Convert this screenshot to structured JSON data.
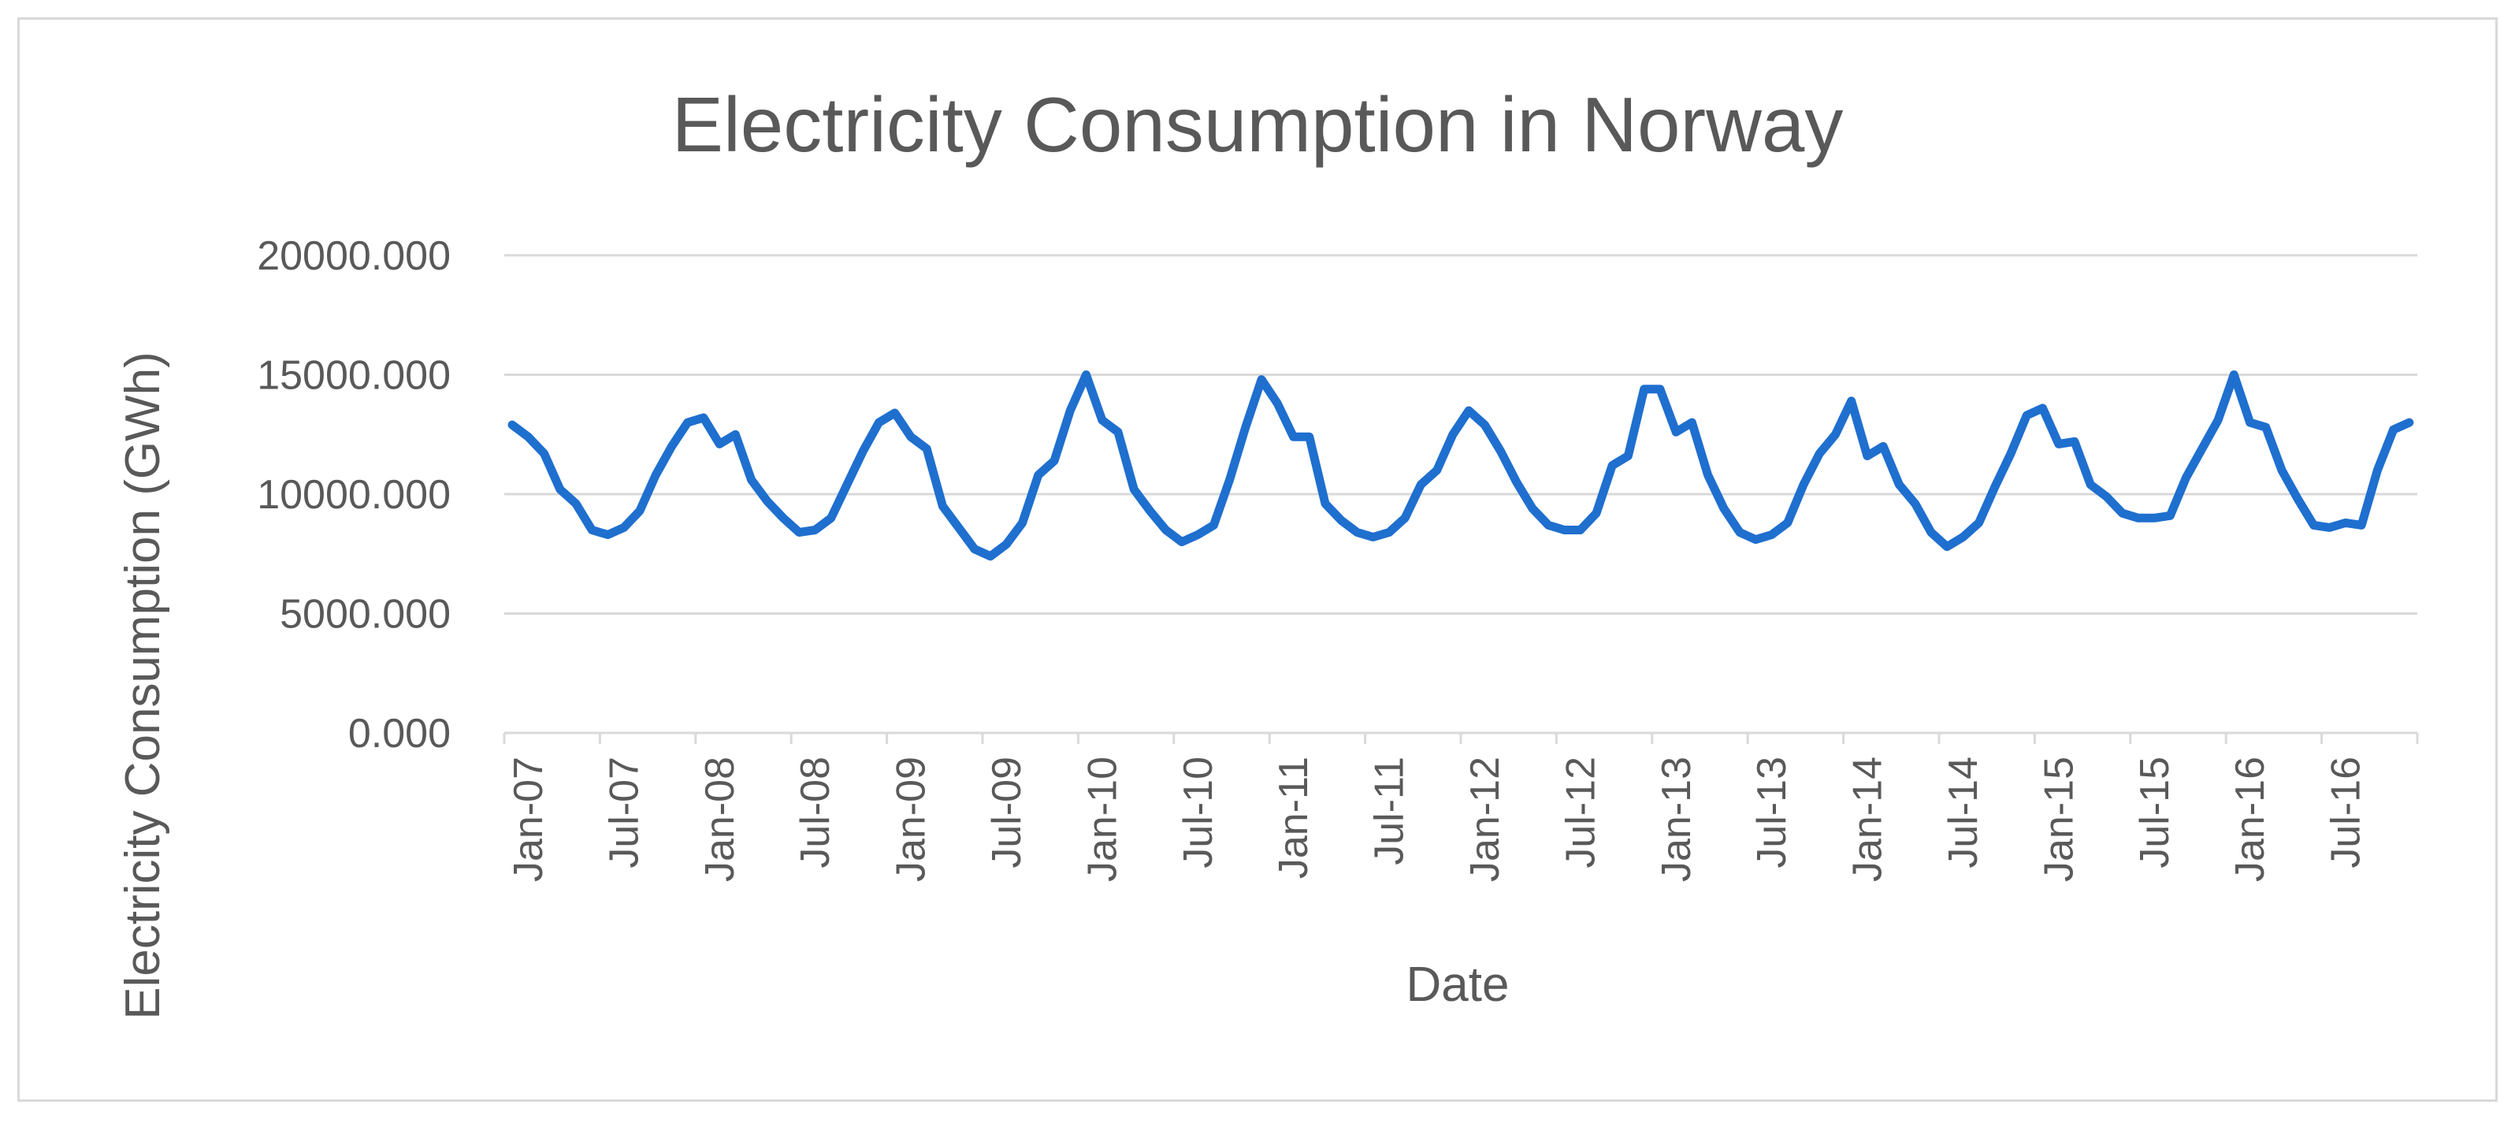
{
  "chart_data": {
    "type": "line",
    "title": "Electricity Consumption in Norway",
    "xlabel": "Date",
    "ylabel": "Electricity Consumption (GWh)",
    "ylim": [
      0,
      20000
    ],
    "yticks": [
      0,
      5000,
      10000,
      15000,
      20000
    ],
    "ytick_labels": [
      "0.000",
      "5000.000",
      "10000.000",
      "15000.000",
      "20000.000"
    ],
    "xtick_labels": [
      "Jan-07",
      "Jul-07",
      "Jan-08",
      "Jul-08",
      "Jan-09",
      "Jul-09",
      "Jan-10",
      "Jul-10",
      "Jan-11",
      "Jul-11",
      "Jan-12",
      "Jul-12",
      "Jan-13",
      "Jul-13",
      "Jan-14",
      "Jul-14",
      "Jan-15",
      "Jul-15",
      "Jan-16",
      "Jul-16"
    ],
    "grid": true,
    "legend": "none",
    "line_color": "#1f6fcf",
    "grid_color": "#d9d9d9",
    "text_color": "#595959",
    "series": [
      {
        "name": "Electricity Consumption (GWh)",
        "start": "Jan-07",
        "frequency": "monthly",
        "values": [
          12900,
          12400,
          11700,
          10200,
          9600,
          8500,
          8300,
          8600,
          9300,
          10800,
          12000,
          13000,
          13200,
          12100,
          12500,
          10600,
          9700,
          9000,
          8400,
          8500,
          9000,
          10400,
          11800,
          13000,
          13400,
          12400,
          11900,
          9500,
          8600,
          7700,
          7400,
          7900,
          8800,
          10800,
          11400,
          13500,
          15000,
          13100,
          12600,
          10200,
          9300,
          8500,
          8000,
          8300,
          8700,
          10600,
          12800,
          14800,
          13800,
          12400,
          12400,
          9600,
          8900,
          8400,
          8200,
          8400,
          9000,
          10400,
          11000,
          12500,
          13500,
          12900,
          11800,
          10500,
          9400,
          8700,
          8500,
          8500,
          9200,
          11200,
          11600,
          14400,
          14400,
          12600,
          13000,
          10800,
          9400,
          8400,
          8100,
          8300,
          8800,
          10400,
          11700,
          12500,
          13900,
          11600,
          12000,
          10400,
          9600,
          8400,
          7800,
          8200,
          8800,
          10300,
          11700,
          13300,
          13600,
          12100,
          12200,
          10400,
          9900,
          9200,
          9000,
          9000,
          9100,
          10700,
          11900,
          13100,
          15000,
          13000,
          12800,
          11000,
          9800,
          8700,
          8600,
          8800,
          8700,
          11000,
          12700,
          13000
        ]
      }
    ]
  }
}
